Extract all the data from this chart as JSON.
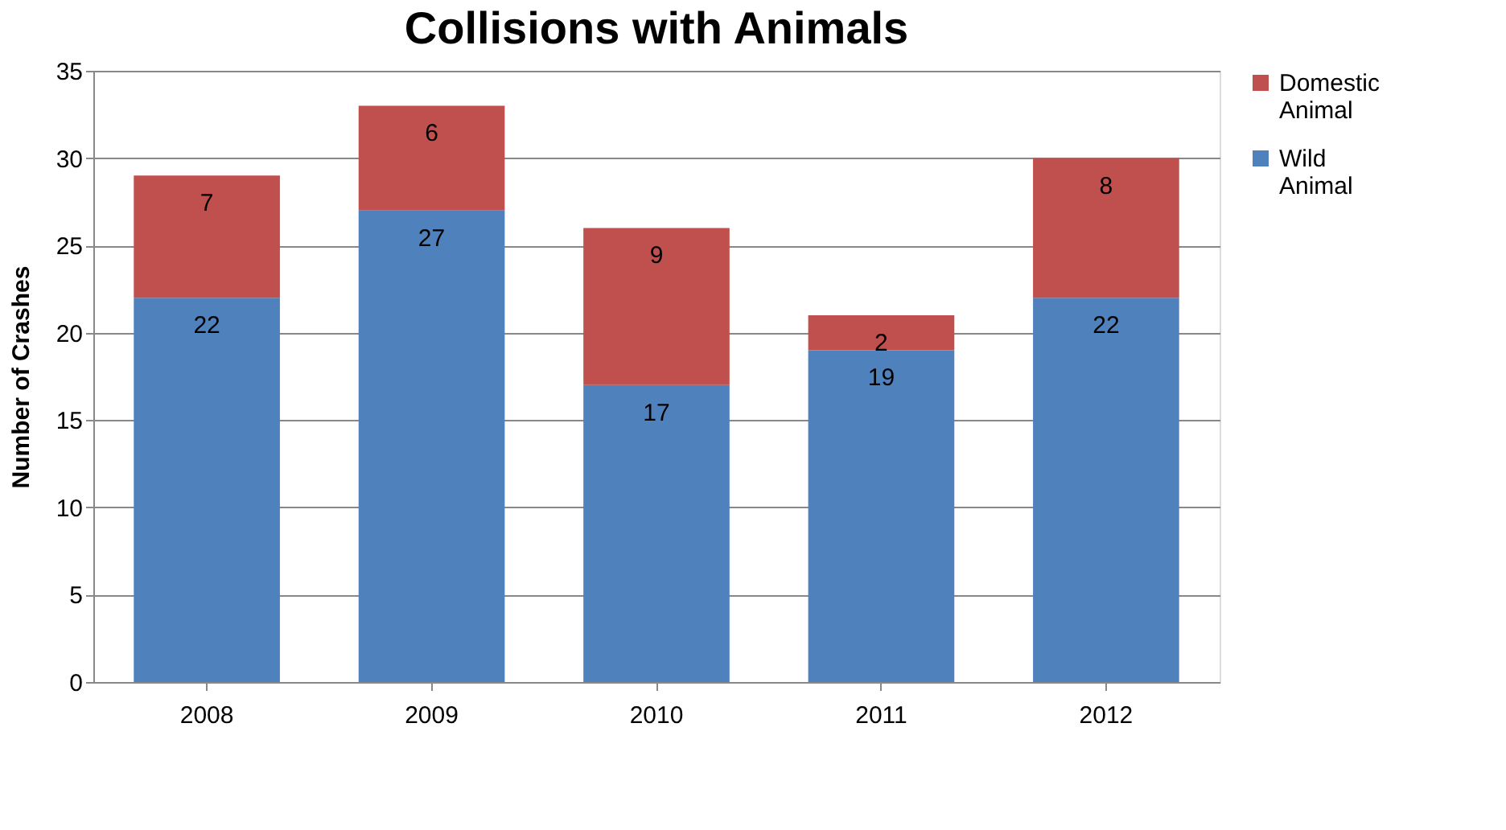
{
  "chart_data": {
    "type": "bar",
    "title": "Collisions with Animals",
    "ylabel": "Number of Crashes",
    "categories": [
      "2008",
      "2009",
      "2010",
      "2011",
      "2012"
    ],
    "stacked": true,
    "series": [
      {
        "name": "Wild Animal",
        "color": "#4f81bd",
        "values": [
          22,
          27,
          17,
          19,
          22
        ]
      },
      {
        "name": "Domestic Animal",
        "color": "#c0504d",
        "values": [
          7,
          6,
          9,
          2,
          8
        ]
      }
    ],
    "ylim": [
      0,
      35
    ],
    "yticks": [
      0,
      5,
      10,
      15,
      20,
      25,
      30,
      35
    ],
    "grid": "y",
    "legend": "right",
    "data_labels": true
  }
}
